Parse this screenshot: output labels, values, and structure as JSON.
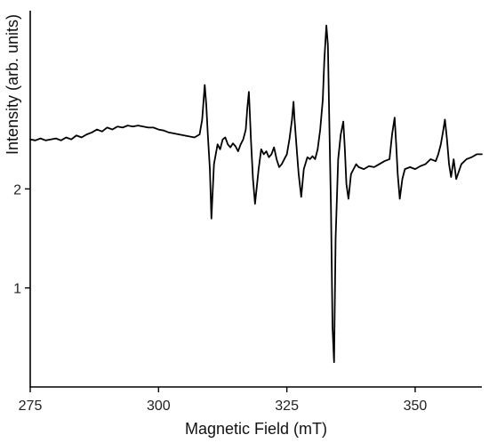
{
  "chart_data": {
    "type": "line",
    "title": "",
    "xlabel": "Magnetic Field (mT)",
    "ylabel": "Intensity (arb. units)",
    "xlim": [
      275,
      363
    ],
    "ylim": [
      0,
      3.8
    ],
    "xticks": [
      275,
      300,
      325,
      350
    ],
    "yticks": [
      1,
      2
    ],
    "grid": false,
    "legend": "none",
    "colors": {
      "line": "#000000",
      "axes": "#000000"
    },
    "series": [
      {
        "x": [
          275,
          276,
          277,
          278,
          279,
          280,
          281,
          282,
          283,
          284,
          285,
          286,
          287,
          288,
          289,
          290,
          291,
          292,
          293,
          294,
          295,
          296,
          297,
          298,
          299,
          300,
          301,
          302,
          303,
          304,
          305,
          306,
          307,
          308,
          308.5,
          309,
          309.3,
          309.6,
          310,
          310.3,
          310.8,
          311.5,
          312,
          312.5,
          313,
          313.5,
          314,
          314.5,
          315,
          315.5,
          316,
          316.5,
          317,
          317.3,
          317.6,
          317.8,
          318,
          318.4,
          318.8,
          319.5,
          320,
          320.5,
          321,
          321.5,
          322,
          322.5,
          323,
          323.5,
          324,
          324.5,
          325,
          325.5,
          326,
          326.3,
          326.5,
          327,
          327.3,
          327.8,
          328.3,
          329,
          329.5,
          330,
          330.5,
          331,
          331.5,
          332,
          332.3,
          332.7,
          333,
          333.3,
          333.6,
          333.9,
          334.2,
          334.5,
          335,
          335.5,
          336,
          336.3,
          336.6,
          337,
          337.5,
          338,
          338.5,
          339,
          340,
          341,
          342,
          343,
          344,
          345,
          345.5,
          346,
          346.3,
          346.6,
          347,
          347.5,
          348,
          349,
          350,
          351,
          352,
          353,
          354,
          354.5,
          355,
          355.5,
          355.8,
          356.2,
          356.6,
          357,
          357.5,
          358,
          359,
          360,
          361,
          362,
          363
        ],
        "y": [
          2.5,
          2.49,
          2.51,
          2.49,
          2.5,
          2.51,
          2.49,
          2.52,
          2.5,
          2.54,
          2.52,
          2.55,
          2.57,
          2.6,
          2.58,
          2.62,
          2.6,
          2.63,
          2.62,
          2.64,
          2.63,
          2.64,
          2.63,
          2.62,
          2.62,
          2.6,
          2.59,
          2.57,
          2.56,
          2.55,
          2.54,
          2.53,
          2.52,
          2.55,
          2.7,
          3.05,
          2.85,
          2.55,
          2.2,
          1.7,
          2.25,
          2.45,
          2.4,
          2.5,
          2.52,
          2.45,
          2.42,
          2.46,
          2.43,
          2.38,
          2.45,
          2.5,
          2.6,
          2.82,
          2.98,
          2.75,
          2.5,
          2.1,
          1.85,
          2.2,
          2.4,
          2.35,
          2.38,
          2.32,
          2.35,
          2.42,
          2.3,
          2.22,
          2.25,
          2.3,
          2.35,
          2.5,
          2.7,
          2.88,
          2.7,
          2.35,
          2.15,
          1.92,
          2.2,
          2.32,
          2.3,
          2.33,
          2.3,
          2.4,
          2.6,
          2.9,
          3.3,
          3.65,
          3.45,
          2.6,
          1.8,
          0.6,
          0.25,
          1.5,
          2.3,
          2.55,
          2.68,
          2.4,
          2.05,
          1.9,
          2.15,
          2.2,
          2.25,
          2.22,
          2.2,
          2.23,
          2.22,
          2.25,
          2.28,
          2.3,
          2.55,
          2.72,
          2.45,
          2.15,
          1.9,
          2.1,
          2.2,
          2.22,
          2.2,
          2.23,
          2.25,
          2.3,
          2.28,
          2.35,
          2.45,
          2.6,
          2.7,
          2.5,
          2.25,
          2.12,
          2.3,
          2.1,
          2.25,
          2.3,
          2.32,
          2.35,
          2.35
        ]
      }
    ]
  }
}
